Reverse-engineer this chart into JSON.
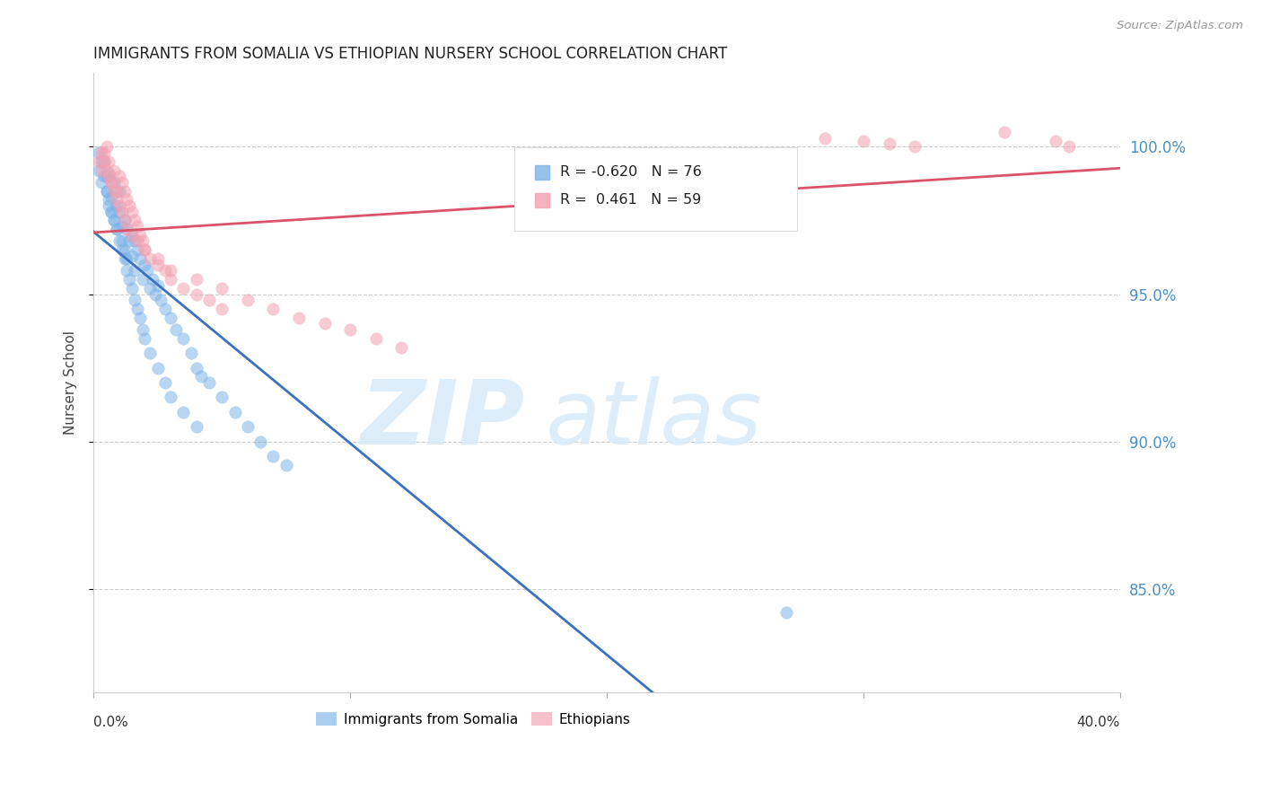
{
  "title": "IMMIGRANTS FROM SOMALIA VS ETHIOPIAN NURSERY SCHOOL CORRELATION CHART",
  "source": "Source: ZipAtlas.com",
  "ylabel": "Nursery School",
  "yticks": [
    100.0,
    95.0,
    90.0,
    85.0
  ],
  "ytick_labels": [
    "100.0%",
    "95.0%",
    "90.0%",
    "85.0%"
  ],
  "xlim": [
    0.0,
    0.4
  ],
  "ylim": [
    81.5,
    102.5
  ],
  "legend_blue_r": "-0.620",
  "legend_blue_n": "76",
  "legend_pink_r": "0.461",
  "legend_pink_n": "59",
  "blue_color": "#7EB3E8",
  "pink_color": "#F4A0B0",
  "blue_line_color": "#3A72C0",
  "pink_line_color": "#D9546A",
  "watermark_zip": "ZIP",
  "watermark_atlas": "atlas",
  "somalia_x": [
    0.002,
    0.003,
    0.004,
    0.005,
    0.005,
    0.006,
    0.006,
    0.007,
    0.007,
    0.008,
    0.008,
    0.009,
    0.009,
    0.01,
    0.01,
    0.011,
    0.011,
    0.012,
    0.012,
    0.013,
    0.013,
    0.014,
    0.015,
    0.015,
    0.016,
    0.016,
    0.017,
    0.018,
    0.019,
    0.02,
    0.021,
    0.022,
    0.023,
    0.024,
    0.025,
    0.026,
    0.028,
    0.03,
    0.032,
    0.035,
    0.038,
    0.04,
    0.042,
    0.045,
    0.05,
    0.055,
    0.06,
    0.065,
    0.07,
    0.075,
    0.002,
    0.003,
    0.004,
    0.005,
    0.006,
    0.007,
    0.008,
    0.009,
    0.01,
    0.011,
    0.012,
    0.013,
    0.014,
    0.015,
    0.016,
    0.017,
    0.018,
    0.019,
    0.02,
    0.022,
    0.025,
    0.028,
    0.03,
    0.035,
    0.04,
    0.27
  ],
  "somalia_y": [
    99.2,
    98.8,
    99.5,
    99.0,
    98.5,
    98.0,
    99.1,
    97.8,
    98.3,
    98.8,
    97.5,
    98.0,
    97.2,
    97.8,
    98.5,
    97.3,
    96.8,
    97.5,
    96.5,
    97.2,
    96.2,
    96.8,
    97.0,
    96.3,
    96.8,
    95.8,
    96.5,
    96.2,
    95.5,
    96.0,
    95.8,
    95.2,
    95.5,
    95.0,
    95.3,
    94.8,
    94.5,
    94.2,
    93.8,
    93.5,
    93.0,
    92.5,
    92.2,
    92.0,
    91.5,
    91.0,
    90.5,
    90.0,
    89.5,
    89.2,
    99.8,
    99.5,
    99.0,
    98.5,
    98.2,
    97.8,
    97.5,
    97.2,
    96.8,
    96.5,
    96.2,
    95.8,
    95.5,
    95.2,
    94.8,
    94.5,
    94.2,
    93.8,
    93.5,
    93.0,
    92.5,
    92.0,
    91.5,
    91.0,
    90.5,
    84.2
  ],
  "ethiopian_x": [
    0.002,
    0.003,
    0.004,
    0.005,
    0.006,
    0.007,
    0.008,
    0.009,
    0.01,
    0.011,
    0.012,
    0.013,
    0.014,
    0.015,
    0.016,
    0.017,
    0.018,
    0.019,
    0.02,
    0.022,
    0.025,
    0.028,
    0.03,
    0.035,
    0.04,
    0.045,
    0.05,
    0.003,
    0.004,
    0.005,
    0.006,
    0.007,
    0.008,
    0.009,
    0.01,
    0.011,
    0.012,
    0.013,
    0.015,
    0.017,
    0.02,
    0.025,
    0.03,
    0.04,
    0.05,
    0.06,
    0.07,
    0.08,
    0.09,
    0.1,
    0.11,
    0.12,
    0.3,
    0.32,
    0.355,
    0.375,
    0.38,
    0.285,
    0.31
  ],
  "ethiopian_y": [
    99.5,
    99.2,
    99.8,
    100.0,
    99.5,
    98.8,
    99.2,
    98.5,
    99.0,
    98.8,
    98.5,
    98.2,
    98.0,
    97.8,
    97.5,
    97.3,
    97.0,
    96.8,
    96.5,
    96.2,
    96.0,
    95.8,
    95.5,
    95.2,
    95.0,
    94.8,
    94.5,
    99.8,
    99.5,
    99.2,
    99.0,
    98.8,
    98.5,
    98.2,
    98.0,
    97.8,
    97.5,
    97.2,
    97.0,
    96.8,
    96.5,
    96.2,
    95.8,
    95.5,
    95.2,
    94.8,
    94.5,
    94.2,
    94.0,
    93.8,
    93.5,
    93.2,
    100.2,
    100.0,
    100.5,
    100.2,
    100.0,
    100.3,
    100.1
  ]
}
